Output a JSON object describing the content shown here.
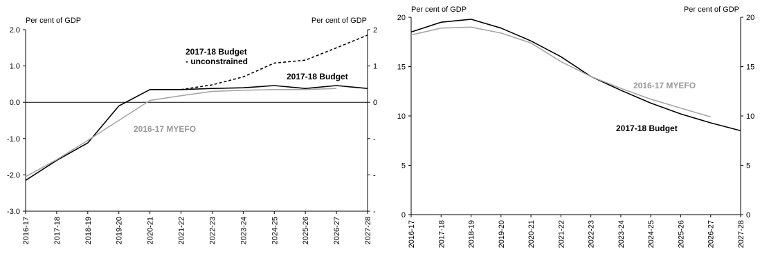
{
  "chart_data": [
    {
      "type": "line",
      "title": "",
      "ylabel_left": "Per cent of GDP",
      "ylabel_right": "Per cent of GDP",
      "ylim": [
        -3.0,
        2.0
      ],
      "y_ticks_left": [
        "2.0",
        "1.0",
        "0.0",
        "-1.0",
        "-2.0",
        "-3.0"
      ],
      "y_ticks_right": [
        "2",
        "1",
        "0",
        "-",
        "-",
        "-"
      ],
      "y_tick_values": [
        2.0,
        1.0,
        0.0,
        -1.0,
        -2.0,
        -3.0
      ],
      "categories": [
        "2016-17",
        "2017-18",
        "2018-19",
        "2019-20",
        "2020-21",
        "2021-22",
        "2022-23",
        "2023-24",
        "2024-25",
        "2025-26",
        "2026-27",
        "2027-28"
      ],
      "grid": false,
      "zero_line": true,
      "series": [
        {
          "name": "2017-18 Budget",
          "color": "#000000",
          "style": "solid",
          "values": [
            -2.15,
            -1.6,
            -1.12,
            -0.1,
            0.35,
            0.35,
            0.38,
            0.4,
            0.46,
            0.38,
            0.46,
            0.38
          ]
        },
        {
          "name": "2017-18 Budget - unconstrained",
          "color": "#000000",
          "style": "dashed",
          "values": [
            null,
            null,
            null,
            null,
            null,
            0.35,
            0.48,
            0.7,
            1.08,
            1.16,
            1.5,
            1.85
          ]
        },
        {
          "name": "2016-17 MYEFO",
          "color": "#a6a6a6",
          "style": "solid",
          "values": [
            -2.05,
            -1.58,
            -1.05,
            -0.5,
            0.05,
            0.18,
            0.3,
            0.33,
            0.35,
            0.35,
            0.38,
            null
          ]
        }
      ],
      "annotations": [
        {
          "text": "2017-18 Budget",
          "series": 0
        },
        {
          "text": "- unconstrained",
          "series": 1
        },
        {
          "text": "2016-17 MYEFO",
          "series": 2
        }
      ]
    },
    {
      "type": "line",
      "title": "",
      "ylabel_left": "Per cent of GDP",
      "ylabel_right": "Per cent of GDP",
      "ylim": [
        0,
        20
      ],
      "y_ticks_left": [
        "20",
        "15",
        "10",
        "5",
        "0"
      ],
      "y_ticks_right": [
        "20",
        "15",
        "10",
        "5",
        "0"
      ],
      "y_tick_values": [
        20,
        15,
        10,
        5,
        0
      ],
      "categories": [
        "2016-17",
        "2017-18",
        "2018-19",
        "2019-20",
        "2020-21",
        "2021-22",
        "2022-23",
        "2023-24",
        "2024-25",
        "2025-26",
        "2026-27",
        "2027-28"
      ],
      "grid": false,
      "series": [
        {
          "name": "2017-18 Budget",
          "color": "#000000",
          "style": "solid",
          "values": [
            18.5,
            19.5,
            19.8,
            18.9,
            17.6,
            16.0,
            14.0,
            12.6,
            11.3,
            10.2,
            9.3,
            8.5
          ]
        },
        {
          "name": "2016-17 MYEFO",
          "color": "#a6a6a6",
          "style": "solid",
          "values": [
            18.2,
            18.9,
            19.0,
            18.4,
            17.4,
            15.5,
            14.0,
            12.8,
            11.7,
            10.8,
            9.9,
            null
          ]
        }
      ],
      "annotations": [
        {
          "text": "2016-17 MYEFO",
          "series": 1
        },
        {
          "text": "2017-18 Budget",
          "series": 0
        }
      ]
    }
  ]
}
